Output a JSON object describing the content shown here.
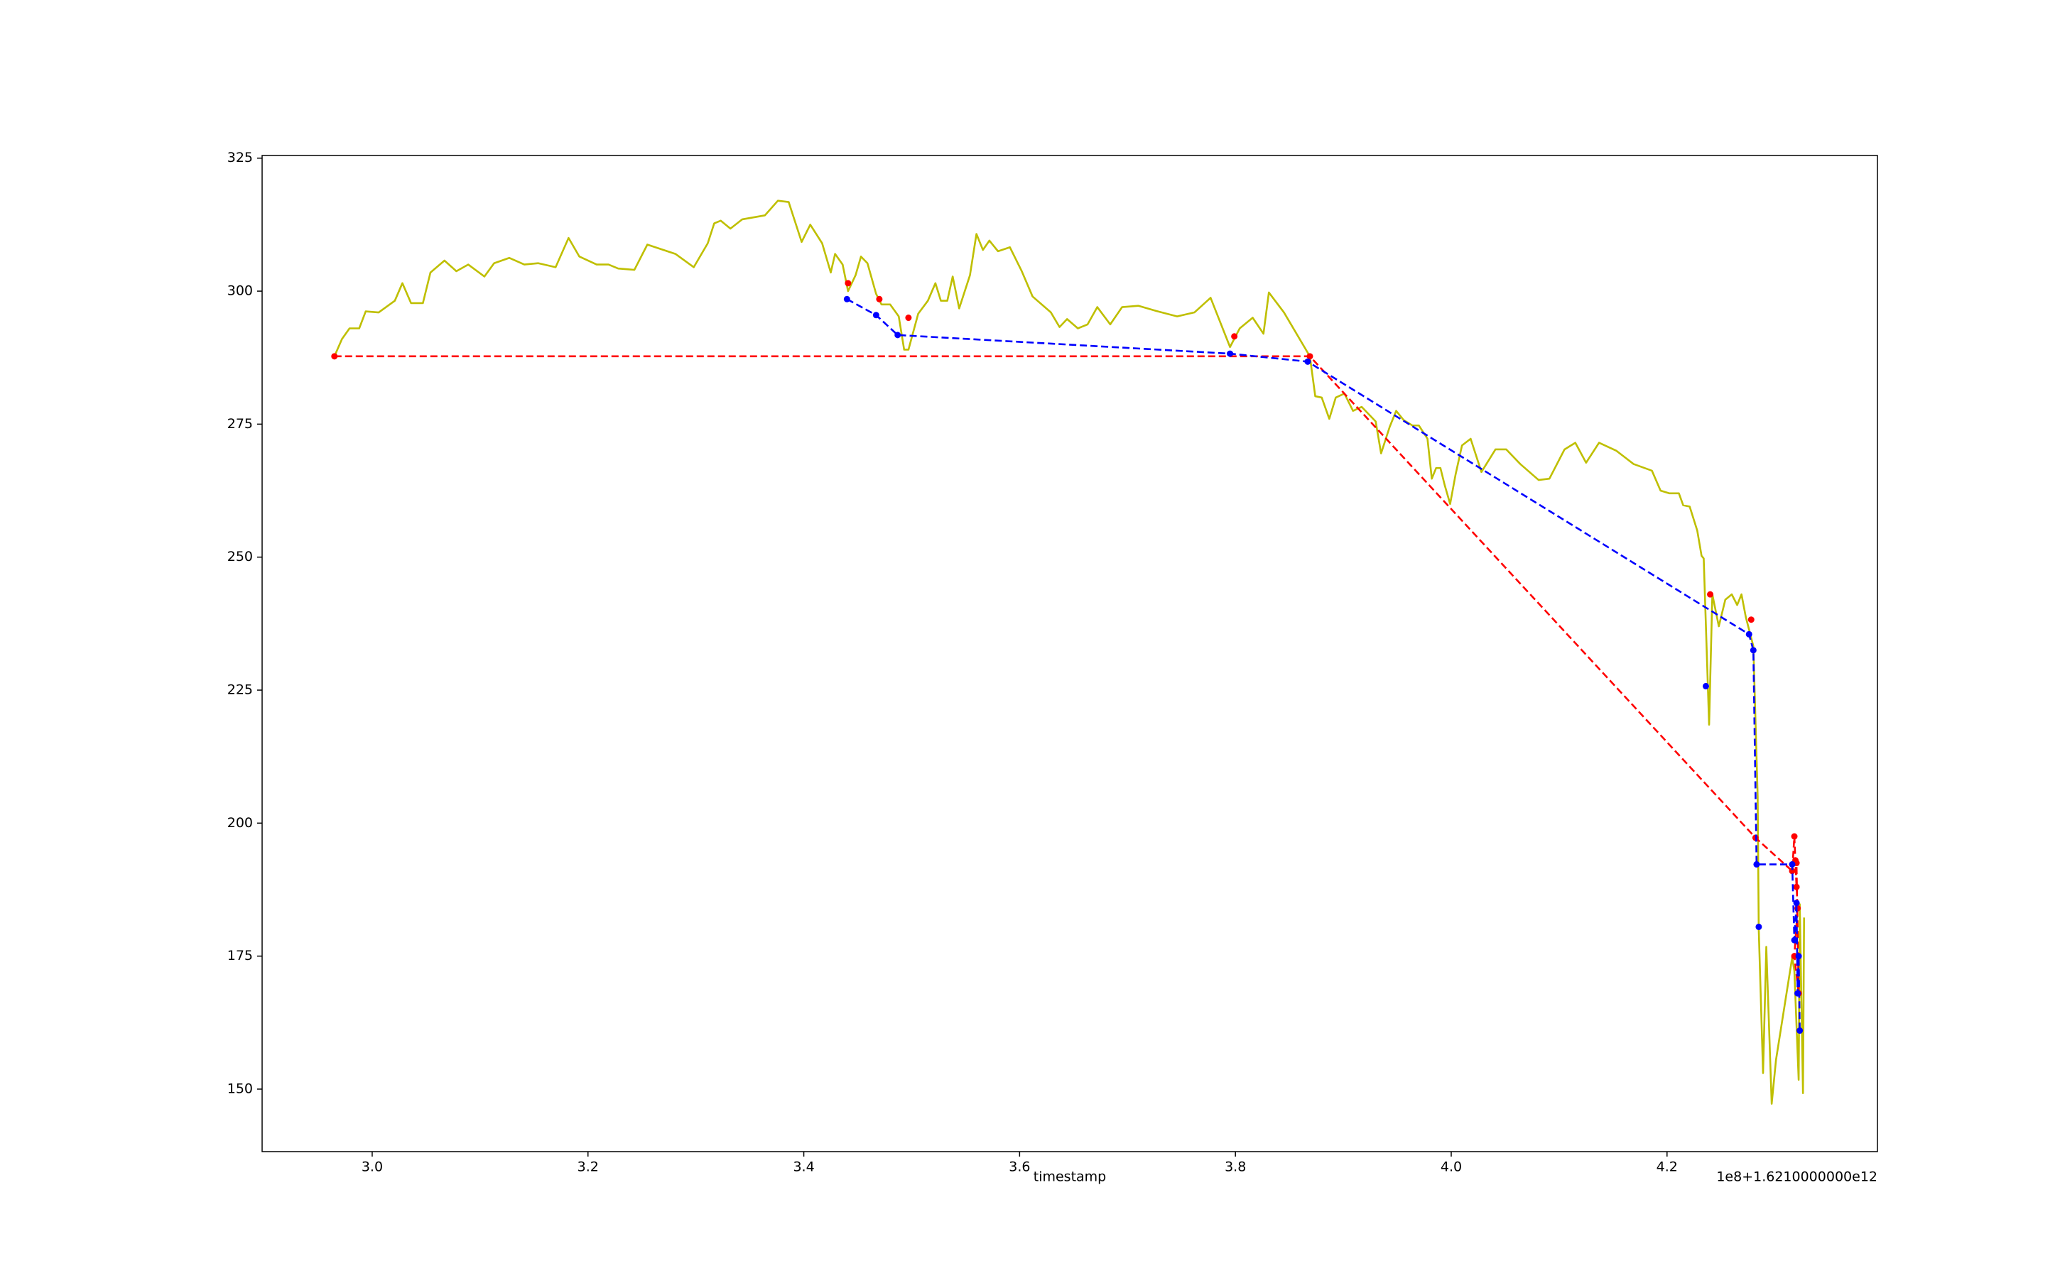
{
  "chart_data": {
    "type": "line",
    "xlabel": "timestamp",
    "x_offset_label": "1e8+1.6210000000e12",
    "xlim": [
      2.898,
      4.395
    ],
    "xticks": [
      {
        "value": 3.0,
        "label": "3.0"
      },
      3.2,
      3.4,
      3.6,
      3.8,
      {
        "value": 4.0,
        "label": "4.0"
      },
      4.2
    ],
    "ylim": [
      138.25,
      325.5
    ],
    "yticks": [
      150,
      175,
      200,
      225,
      250,
      275,
      300,
      325
    ],
    "grid": false,
    "series": [
      {
        "color": "#bfbf00",
        "linestyle": "solid",
        "marker": false,
        "x": [
          2.965,
          2.972,
          2.979,
          2.988,
          2.994,
          3.006,
          3.021,
          3.028,
          3.036,
          3.047,
          3.054,
          3.067,
          3.078,
          3.089,
          3.104,
          3.113,
          3.127,
          3.141,
          3.154,
          3.17,
          3.182,
          3.192,
          3.208,
          3.219,
          3.228,
          3.243,
          3.255,
          3.281,
          3.298,
          3.311,
          3.317,
          3.323,
          3.332,
          3.343,
          3.364,
          3.376,
          3.386,
          3.398,
          3.406,
          3.417,
          3.425,
          3.429,
          3.436,
          3.441,
          3.448,
          3.453,
          3.459,
          3.467,
          3.472,
          3.48,
          3.488,
          3.493,
          3.497,
          3.506,
          3.515,
          3.522,
          3.527,
          3.533,
          3.538,
          3.544,
          3.554,
          3.56,
          3.566,
          3.572,
          3.58,
          3.591,
          3.602,
          3.612,
          3.629,
          3.637,
          3.644,
          3.654,
          3.663,
          3.672,
          3.684,
          3.695,
          3.71,
          3.727,
          3.746,
          3.762,
          3.777,
          3.795,
          3.804,
          3.816,
          3.826,
          3.831,
          3.845,
          3.869,
          3.874,
          3.88,
          3.887,
          3.893,
          3.901,
          3.909,
          3.917,
          3.93,
          3.935,
          3.943,
          3.949,
          3.956,
          3.964,
          3.97,
          3.978,
          3.982,
          3.986,
          3.99,
          3.994,
          3.999,
          4.004,
          4.01,
          4.018,
          4.028,
          4.041,
          4.051,
          4.064,
          4.081,
          4.091,
          4.105,
          4.115,
          4.125,
          4.137,
          4.153,
          4.169,
          4.186,
          4.194,
          4.202,
          4.211,
          4.215,
          4.221,
          4.228,
          4.232,
          4.234,
          4.239,
          4.242,
          4.248,
          4.254,
          4.26,
          4.265,
          4.269,
          4.273,
          4.28,
          4.284,
          4.285,
          4.289,
          4.292,
          4.297,
          4.301,
          4.316,
          4.318,
          4.322,
          4.323,
          4.326,
          4.327
        ],
        "values": [
          287.75,
          291,
          293,
          293,
          296.2,
          296,
          298.2,
          301.5,
          297.75,
          297.75,
          303.5,
          305.75,
          303.75,
          305,
          302.75,
          305.25,
          306.25,
          305,
          305.25,
          304.5,
          310,
          306.5,
          305,
          305,
          304.25,
          304,
          308.75,
          307,
          304.5,
          309,
          312.75,
          313.25,
          311.75,
          313.5,
          314.25,
          317,
          316.75,
          309.25,
          312.5,
          309,
          303.5,
          307,
          305,
          300,
          303,
          306.5,
          305.25,
          299.5,
          297.5,
          297.5,
          295.25,
          289,
          289,
          295.75,
          298.2,
          301.5,
          298.2,
          298.2,
          302.75,
          296.75,
          303,
          310.75,
          307.75,
          309.5,
          307.5,
          308.25,
          303.75,
          299,
          296,
          293.25,
          294.75,
          293,
          293.75,
          297,
          293.75,
          297,
          297.25,
          296.25,
          295.25,
          296,
          298.75,
          289.5,
          293,
          295,
          292,
          299.75,
          296,
          287.75,
          280.25,
          280,
          276,
          280,
          280.75,
          277.5,
          278.25,
          275.5,
          269.5,
          274.5,
          277.5,
          275.75,
          274.75,
          274.75,
          272.25,
          264.75,
          266.75,
          266.75,
          263.5,
          260,
          265.5,
          271,
          272.25,
          266,
          270.25,
          270.25,
          267.5,
          264.5,
          264.75,
          270.25,
          271.5,
          267.75,
          271.5,
          270,
          267.5,
          266.25,
          262.5,
          262,
          262,
          259.75,
          259.5,
          255,
          250.25,
          249.75,
          218.5,
          243,
          237,
          242,
          243,
          241,
          243,
          238.75,
          233.25,
          205,
          180,
          153,
          176.75,
          147.25,
          155.5,
          174.75,
          172.25,
          151.75,
          184.75,
          149.25,
          182.25
        ]
      },
      {
        "color": "#ff0000",
        "linestyle": "dashed",
        "marker": true,
        "x": [
          2.965,
          3.869,
          4.282,
          4.316,
          4.318,
          4.32,
          4.319,
          4.321,
          4.318,
          4.322,
          4.32
        ],
        "values": [
          287.75,
          287.75,
          197.25,
          191,
          197.5,
          188,
          193,
          184,
          175,
          168,
          192.5
        ]
      },
      {
        "color": "#0000ff",
        "linestyle": "dashed",
        "marker": true,
        "x": [
          3.44,
          3.467,
          3.487,
          3.795,
          3.867,
          4.276,
          4.28,
          4.283,
          4.316,
          4.318,
          4.32,
          4.321,
          4.322,
          4.323
        ],
        "values": [
          298.5,
          295.5,
          291.75,
          288.25,
          286.75,
          235.5,
          232.5,
          192.25,
          192.25,
          178,
          185,
          168,
          175,
          161
        ]
      },
      {
        "color": "#ff0000",
        "linestyle": "none",
        "marker": true,
        "x": [
          3.441,
          3.47,
          3.497,
          3.799,
          4.24,
          4.278
        ],
        "values": [
          301.5,
          298.5,
          295,
          291.5,
          243,
          238.25
        ]
      },
      {
        "color": "#0000ff",
        "linestyle": "none",
        "marker": true,
        "x": [
          4.236,
          4.285
        ],
        "values": [
          225.75,
          180.5
        ]
      }
    ]
  }
}
